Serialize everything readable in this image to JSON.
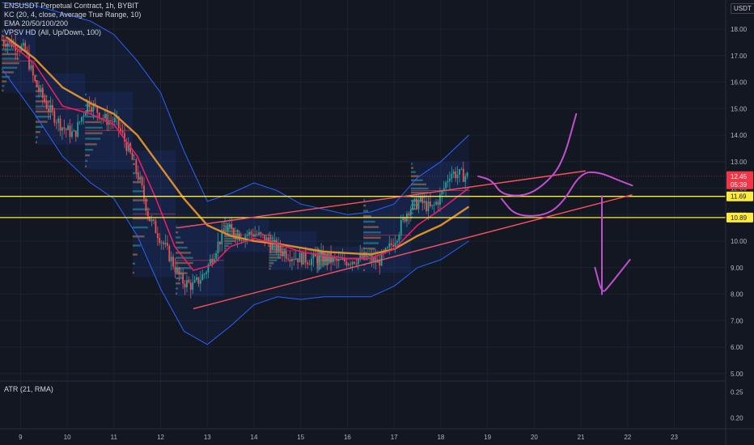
{
  "legend": {
    "symbol": "ENSUSDT Perpetual Contract, 1h, BYBIT",
    "kc": "KC (20, 4, close, Average True Range, 10)",
    "ema": "EMA 20/50/100/200",
    "vpsv": "VPSV HD (All, Up/Down, 100)"
  },
  "currency": "USDT",
  "atr_label": "ATR (21, RMA)",
  "price_tags": {
    "current": {
      "price": "12.45",
      "countdown": "05:39",
      "color": "#f23645"
    },
    "level_high": {
      "price": "11.69",
      "color": "#ffeb3b"
    },
    "level_low": {
      "price": "10.89",
      "color": "#ffeb3b"
    }
  },
  "colors": {
    "background": "#131722",
    "up_candle": "#26a69a",
    "down_candle": "#ef5350",
    "kc_band": "#2962ff",
    "ema_fast": "#e91e63",
    "ema_slow": "#d98e2b",
    "trendline": "#f7525f",
    "drawing": "#c04fd0",
    "level": "#ffeb3b"
  },
  "chart_data": [
    {
      "type": "candlestick",
      "title": "ENSUSDT Perpetual Contract, 1h, BYBIT",
      "x_ticks": [
        "9",
        "10",
        "11",
        "12",
        "13",
        "14",
        "15",
        "16",
        "17",
        "18",
        "19",
        "20",
        "21",
        "22",
        "23"
      ],
      "y_ticks": [
        5.0,
        6.0,
        7.0,
        8.0,
        9.0,
        10.0,
        11.0,
        12.0,
        13.0,
        14.0,
        15.0,
        16.0,
        17.0,
        18.0
      ],
      "y_range": [
        4.75,
        19.1
      ],
      "x_range": [
        8.56,
        24.1
      ],
      "price_path": [
        [
          8.6,
          17.6
        ],
        [
          8.9,
          17.4
        ],
        [
          9.1,
          17.2
        ],
        [
          9.3,
          16.0
        ],
        [
          9.6,
          15.0
        ],
        [
          9.9,
          14.3
        ],
        [
          10.15,
          14.0
        ],
        [
          10.45,
          15.3
        ],
        [
          10.8,
          14.6
        ],
        [
          11.05,
          14.5
        ],
        [
          11.3,
          13.5
        ],
        [
          11.55,
          12.3
        ],
        [
          11.75,
          10.9
        ],
        [
          12.0,
          10.1
        ],
        [
          12.2,
          9.4
        ],
        [
          12.45,
          8.5
        ],
        [
          12.7,
          8.3
        ],
        [
          12.95,
          8.8
        ],
        [
          13.2,
          9.8
        ],
        [
          13.4,
          10.5
        ],
        [
          13.7,
          10.2
        ],
        [
          14.0,
          10.3
        ],
        [
          14.3,
          10.0
        ],
        [
          14.6,
          9.6
        ],
        [
          14.9,
          9.4
        ],
        [
          15.2,
          9.3
        ],
        [
          15.5,
          9.4
        ],
        [
          15.8,
          9.2
        ],
        [
          16.1,
          9.3
        ],
        [
          16.4,
          9.4
        ],
        [
          16.65,
          9.2
        ],
        [
          16.85,
          9.6
        ],
        [
          17.05,
          10.2
        ],
        [
          17.3,
          11.2
        ],
        [
          17.55,
          11.5
        ],
        [
          17.8,
          11.2
        ],
        [
          18.0,
          11.7
        ],
        [
          18.2,
          12.6
        ],
        [
          18.4,
          12.5
        ],
        [
          18.6,
          12.45
        ]
      ],
      "ema_fast": [
        [
          8.7,
          17.6
        ],
        [
          9.3,
          16.7
        ],
        [
          9.9,
          15.1
        ],
        [
          10.5,
          14.8
        ],
        [
          11.0,
          14.4
        ],
        [
          11.5,
          13.2
        ],
        [
          11.9,
          11.6
        ],
        [
          12.3,
          9.8
        ],
        [
          12.7,
          8.9
        ],
        [
          13.1,
          9.1
        ],
        [
          13.5,
          9.8
        ],
        [
          14.0,
          10.1
        ],
        [
          14.5,
          9.9
        ],
        [
          15.0,
          9.6
        ],
        [
          15.5,
          9.45
        ],
        [
          16.0,
          9.35
        ],
        [
          16.5,
          9.35
        ],
        [
          17.0,
          9.7
        ],
        [
          17.5,
          10.6
        ],
        [
          18.0,
          11.2
        ],
        [
          18.6,
          12.0
        ]
      ],
      "ema_slow": [
        [
          8.7,
          17.7
        ],
        [
          9.3,
          16.9
        ],
        [
          9.9,
          15.8
        ],
        [
          10.5,
          15.2
        ],
        [
          11.0,
          14.8
        ],
        [
          11.5,
          14.0
        ],
        [
          12.0,
          12.8
        ],
        [
          12.5,
          11.6
        ],
        [
          13.0,
          10.6
        ],
        [
          13.5,
          10.2
        ],
        [
          14.0,
          10.0
        ],
        [
          14.5,
          9.9
        ],
        [
          15.0,
          9.75
        ],
        [
          15.5,
          9.6
        ],
        [
          16.0,
          9.55
        ],
        [
          16.5,
          9.5
        ],
        [
          17.0,
          9.7
        ],
        [
          17.5,
          10.2
        ],
        [
          18.0,
          10.6
        ],
        [
          18.6,
          11.3
        ]
      ],
      "kc_upper": [
        [
          8.6,
          19.0
        ],
        [
          9.3,
          18.9
        ],
        [
          9.9,
          18.6
        ],
        [
          10.5,
          18.3
        ],
        [
          11.0,
          17.8
        ],
        [
          11.5,
          16.8
        ],
        [
          12.0,
          15.6
        ],
        [
          12.5,
          13.4
        ],
        [
          13.0,
          11.5
        ],
        [
          13.5,
          11.8
        ],
        [
          14.0,
          12.2
        ],
        [
          14.5,
          11.9
        ],
        [
          15.0,
          11.4
        ],
        [
          15.5,
          11.2
        ],
        [
          16.0,
          11.0
        ],
        [
          16.5,
          11.1
        ],
        [
          17.0,
          11.4
        ],
        [
          17.5,
          12.4
        ],
        [
          18.0,
          13.0
        ],
        [
          18.6,
          14.0
        ]
      ],
      "kc_lower": [
        [
          8.6,
          16.5
        ],
        [
          9.3,
          14.8
        ],
        [
          9.9,
          13.2
        ],
        [
          10.5,
          12.2
        ],
        [
          11.0,
          11.6
        ],
        [
          11.5,
          10.2
        ],
        [
          12.0,
          8.2
        ],
        [
          12.5,
          6.6
        ],
        [
          13.0,
          6.1
        ],
        [
          13.5,
          6.8
        ],
        [
          14.0,
          7.6
        ],
        [
          14.5,
          7.9
        ],
        [
          15.0,
          7.8
        ],
        [
          15.5,
          7.9
        ],
        [
          16.0,
          7.9
        ],
        [
          16.5,
          7.9
        ],
        [
          17.0,
          8.3
        ],
        [
          17.5,
          9.0
        ],
        [
          18.0,
          9.3
        ],
        [
          18.6,
          10.0
        ]
      ],
      "wedge_upper": [
        [
          12.35,
          10.5
        ],
        [
          21.1,
          12.65
        ]
      ],
      "wedge_lower": [
        [
          12.7,
          7.45
        ],
        [
          22.1,
          11.75
        ]
      ],
      "levels": [
        11.69,
        10.89
      ],
      "current_price": 12.45,
      "drawings": {
        "bounce_path": [
          [
            18.8,
            12.45
          ],
          [
            19.1,
            12.3
          ],
          [
            19.3,
            11.75
          ],
          [
            19.8,
            11.7
          ],
          [
            20.2,
            12.1
          ],
          [
            20.6,
            12.9
          ],
          [
            20.9,
            14.8
          ]
        ],
        "retest_path": [
          [
            19.3,
            11.6
          ],
          [
            19.6,
            10.95
          ],
          [
            20.2,
            10.95
          ],
          [
            20.6,
            11.4
          ],
          [
            21.0,
            12.6
          ],
          [
            21.4,
            12.6
          ],
          [
            21.8,
            12.3
          ],
          [
            22.1,
            12.1
          ]
        ],
        "drop_arrow": [
          [
            21.45,
            11.7
          ],
          [
            21.45,
            8.0
          ]
        ],
        "drop_arrow_tip": [
          [
            21.3,
            9.0
          ],
          [
            21.45,
            8.0
          ],
          [
            21.6,
            8.3
          ],
          [
            22.05,
            9.3
          ]
        ]
      }
    },
    {
      "type": "line",
      "title": "ATR (21, RMA)",
      "y_ticks": [
        0.25,
        0.2
      ],
      "y_range": [
        0.18,
        0.27
      ]
    }
  ]
}
